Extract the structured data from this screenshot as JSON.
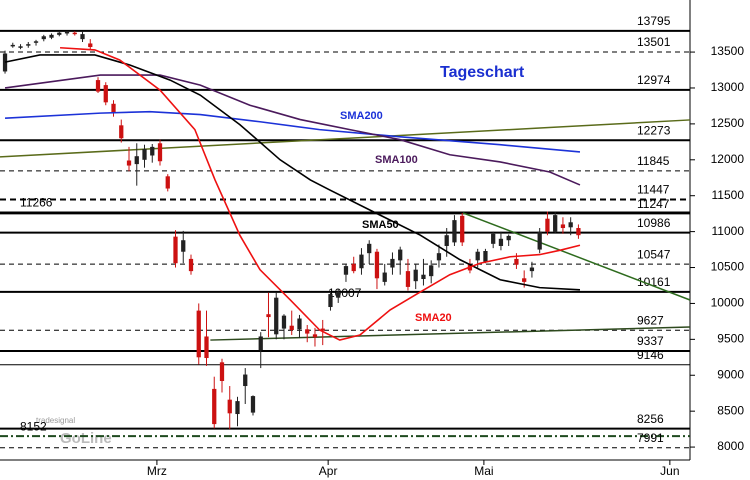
{
  "chart_data": {
    "type": "candlestick",
    "title": "Tageschart",
    "watermark": [
      "tradesignal",
      "GoLine"
    ],
    "xlim": [
      -0.65,
      88.4
    ],
    "xticks": [
      {
        "value": 19.6,
        "label": "Mrz"
      },
      {
        "value": 41.7,
        "label": "Apr"
      },
      {
        "value": 61.8,
        "label": "Mai"
      },
      {
        "value": 85.8,
        "label": "Jun"
      }
    ],
    "ylim": [
      7820,
      14225
    ],
    "yticks": [
      8000,
      8500,
      9000,
      9500,
      10000,
      10500,
      11000,
      11500,
      12000,
      12500,
      13000,
      13500
    ],
    "up_color": "#222222",
    "down_color": "#cc1111",
    "candles": [
      [
        13230,
        13520,
        13200,
        13480
      ],
      [
        13590,
        13630,
        13560,
        13600
      ],
      [
        13570,
        13610,
        13540,
        13580
      ],
      [
        13590,
        13640,
        13560,
        13610
      ],
      [
        13630,
        13670,
        13590,
        13650
      ],
      [
        13680,
        13740,
        13650,
        13720
      ],
      [
        13700,
        13760,
        13680,
        13740
      ],
      [
        13740,
        13790,
        13720,
        13770
      ],
      [
        13760,
        13795,
        13730,
        13780
      ],
      [
        13770,
        13790,
        13730,
        13750
      ],
      [
        13680,
        13790,
        13640,
        13750
      ],
      [
        13620,
        13680,
        13540,
        13570
      ],
      [
        13110,
        13150,
        12930,
        12950
      ],
      [
        13040,
        13080,
        12760,
        12800
      ],
      [
        12780,
        12830,
        12600,
        12650
      ],
      [
        12480,
        12560,
        12240,
        12300
      ],
      [
        11990,
        12180,
        11840,
        11920
      ],
      [
        11940,
        12230,
        11640,
        12050
      ],
      [
        12000,
        12210,
        11890,
        12150
      ],
      [
        12060,
        12220,
        11960,
        12180
      ],
      [
        12230,
        12280,
        11920,
        11980
      ],
      [
        11770,
        11800,
        11560,
        11600
      ],
      [
        10930,
        11020,
        10500,
        10560
      ],
      [
        10720,
        11010,
        10560,
        10880
      ],
      [
        10620,
        10680,
        10400,
        10450
      ],
      [
        9900,
        10000,
        9150,
        9250
      ],
      [
        9540,
        9900,
        9130,
        9240
      ],
      [
        8810,
        8980,
        8260,
        8320
      ],
      [
        9180,
        9230,
        8760,
        8920
      ],
      [
        8660,
        8850,
        8250,
        8470
      ],
      [
        8460,
        8700,
        8290,
        8640
      ],
      [
        8850,
        9100,
        8600,
        9010
      ],
      [
        8480,
        8720,
        8440,
        8710
      ],
      [
        9350,
        9600,
        9100,
        9540
      ],
      [
        9850,
        10150,
        9530,
        9810
      ],
      [
        9570,
        10150,
        9500,
        10080
      ],
      [
        9650,
        9850,
        9500,
        9830
      ],
      [
        9690,
        9900,
        9560,
        9630
      ],
      [
        9640,
        9840,
        9520,
        9790
      ],
      [
        9640,
        9700,
        9460,
        9580
      ],
      [
        9570,
        9660,
        9400,
        9530
      ],
      [
        9650,
        9770,
        9420,
        9620
      ],
      [
        9950,
        10160,
        9900,
        10130
      ],
      [
        10080,
        10200,
        10007,
        10160
      ],
      [
        10400,
        10540,
        10300,
        10520
      ],
      [
        10550,
        10650,
        10420,
        10450
      ],
      [
        10490,
        10770,
        10400,
        10680
      ],
      [
        10700,
        10880,
        10550,
        10830
      ],
      [
        10720,
        10760,
        10200,
        10350
      ],
      [
        10300,
        10550,
        10250,
        10430
      ],
      [
        10500,
        10710,
        10400,
        10620
      ],
      [
        10600,
        10790,
        10400,
        10750
      ],
      [
        10450,
        10620,
        10180,
        10230
      ],
      [
        10310,
        10550,
        10200,
        10470
      ],
      [
        10340,
        10620,
        10250,
        10400
      ],
      [
        10380,
        10600,
        10280,
        10530
      ],
      [
        10600,
        10820,
        10500,
        10700
      ],
      [
        10800,
        11050,
        10650,
        10950
      ],
      [
        10850,
        11230,
        10800,
        11160
      ],
      [
        11220,
        11260,
        10800,
        10850
      ],
      [
        10540,
        10620,
        10420,
        10460
      ],
      [
        10600,
        10760,
        10500,
        10720
      ],
      [
        10580,
        10760,
        10560,
        10730
      ],
      [
        10830,
        11000,
        10770,
        10970
      ],
      [
        10800,
        11000,
        10740,
        10900
      ],
      [
        10880,
        10960,
        10800,
        10940
      ],
      [
        10620,
        10700,
        10480,
        10540
      ],
      [
        10350,
        10460,
        10220,
        10300
      ],
      [
        10450,
        10580,
        10360,
        10500
      ],
      [
        10750,
        11050,
        10700,
        11000
      ],
      [
        11180,
        11280,
        10950,
        11000
      ],
      [
        11000,
        11270,
        10980,
        11230
      ],
      [
        11100,
        11200,
        10970,
        11050
      ],
      [
        11060,
        11200,
        10950,
        11130
      ],
      [
        11050,
        11100,
        10900,
        10950
      ]
    ],
    "series": [
      {
        "name": "SMA200",
        "color": "#1c32d8",
        "x": [
          0,
          12.3,
          18.7,
          25.2,
          32.9,
          40.6,
          51,
          63.9,
          74.2
        ],
        "values": [
          12580,
          12650,
          12670,
          12630,
          12530,
          12420,
          12320,
          12210,
          12110
        ]
      },
      {
        "name": "SMA100",
        "color": "#4b1a5c",
        "x": [
          0,
          12.3,
          20,
          25.2,
          31.6,
          38.1,
          44.5,
          51,
          57.4,
          63.9,
          70.3,
          74.2
        ],
        "values": [
          13000,
          13180,
          13180,
          13040,
          12760,
          12560,
          12420,
          12280,
          12070,
          11970,
          11830,
          11650
        ]
      },
      {
        "name": "SMA50",
        "color": "#000000",
        "x": [
          0,
          4.5,
          11.6,
          16.1,
          21.3,
          25.2,
          30.3,
          35.5,
          39.4,
          41.9,
          48.4,
          53.6,
          58.7,
          63.9,
          69,
          74.2
        ],
        "values": [
          13360,
          13460,
          13460,
          13320,
          13110,
          12900,
          12490,
          12000,
          11720,
          11580,
          11230,
          10950,
          10610,
          10330,
          10220,
          10190
        ]
      },
      {
        "name": "SMA20",
        "color": "#ee1111",
        "x": [
          7.1,
          11.6,
          14.8,
          20,
          24.5,
          27.1,
          30.3,
          32.9,
          36.8,
          40.6,
          43.2,
          45.8,
          49.7,
          53.6,
          57.4,
          61.3,
          65.2,
          69,
          71.6,
          74.2
        ],
        "values": [
          13560,
          13530,
          13390,
          12970,
          12420,
          11720,
          10950,
          10470,
          10050,
          9630,
          9490,
          9560,
          9910,
          10160,
          10400,
          10560,
          10650,
          10680,
          10740,
          10810
        ]
      }
    ],
    "trendlines": [
      {
        "color": "#5a6b1a",
        "x": [
          -0.65,
          88.4
        ],
        "values": [
          12040,
          12555
        ]
      },
      {
        "color": "#2e6b1e",
        "x": [
          59.1,
          88.4
        ],
        "values": [
          11260,
          10048
        ]
      },
      {
        "color": "#2e4a1e",
        "x": [
          26.5,
          88.4
        ],
        "values": [
          9490,
          9672
        ]
      }
    ],
    "levels": [
      {
        "value": 13795,
        "style": "solid2",
        "side": "right"
      },
      {
        "value": 13501,
        "style": "dashed",
        "side": "right"
      },
      {
        "value": 12974,
        "style": "solid2",
        "side": "right"
      },
      {
        "value": 12273,
        "style": "solid2",
        "side": "right"
      },
      {
        "value": 11845,
        "style": "dashed",
        "side": "right"
      },
      {
        "value": 11447,
        "style": "dashed2",
        "side": "right"
      },
      {
        "value": 11266,
        "style": "solid2",
        "side": "left"
      },
      {
        "value": 11247,
        "style": "solid",
        "side": "right"
      },
      {
        "value": 10986,
        "style": "solid2",
        "side": "right"
      },
      {
        "value": 10547,
        "style": "dashed",
        "side": "right"
      },
      {
        "value": 10161,
        "style": "solid2",
        "side": "right"
      },
      {
        "value": 10007,
        "style": "none",
        "side": "mid"
      },
      {
        "value": 9627,
        "style": "dashed",
        "side": "right"
      },
      {
        "value": 9337,
        "style": "solid2",
        "side": "right"
      },
      {
        "value": 9146,
        "style": "solid",
        "side": "right"
      },
      {
        "value": 8256,
        "style": "solid2",
        "side": "right"
      },
      {
        "value": 8152,
        "style": "dashdot",
        "side": "left"
      },
      {
        "value": 7991,
        "style": "dashed",
        "side": "right"
      }
    ]
  }
}
